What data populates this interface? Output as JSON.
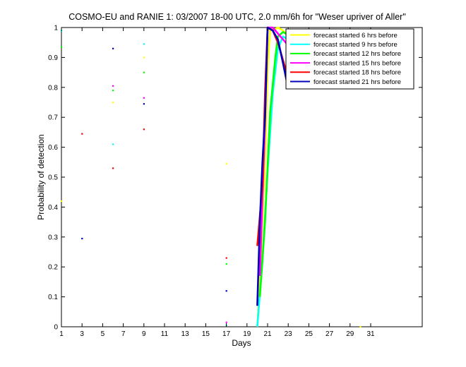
{
  "chart_data": {
    "type": "line",
    "title": "COSMO-EU and RANIE 1: 03/2007 18-00 UTC, 2.0 mm/6h for \"Weser upriver of Aller\"",
    "xlabel": "Days",
    "ylabel": "Probability of detection",
    "xlim": [
      1,
      36
    ],
    "ylim": [
      0,
      1
    ],
    "xticks": [
      1,
      3,
      5,
      7,
      9,
      11,
      13,
      15,
      17,
      19,
      21,
      23,
      25,
      27,
      29,
      31
    ],
    "yticks": [
      0,
      0.1,
      0.2,
      0.3,
      0.4,
      0.5,
      0.6,
      0.7,
      0.8,
      0.9,
      1
    ],
    "yticklabels": [
      "0",
      "0.1",
      "0.2",
      "0.3",
      "0.4",
      "0.5",
      "0.6",
      "0.7",
      "0.8",
      "0.9",
      "1"
    ],
    "grid": false,
    "legend_position": "top-right",
    "series": [
      {
        "name": "forecast started 6 hrs before",
        "color": "#ffff00",
        "points": [
          [
            1,
            0.42
          ],
          [
            6,
            0.75
          ],
          [
            9,
            0.9
          ],
          [
            17,
            0.545
          ],
          [
            30,
            0.0
          ]
        ],
        "line": [
          [
            20,
            0.0
          ],
          [
            20.25,
            0.15
          ],
          [
            20.5,
            0.35
          ],
          [
            20.75,
            0.55
          ],
          [
            21,
            0.85
          ],
          [
            21.25,
            1.0
          ],
          [
            21.5,
            0.99
          ],
          [
            22,
            1.0
          ],
          [
            22.5,
            0.99
          ],
          [
            23,
            0.97
          ]
        ]
      },
      {
        "name": "forecast started 9 hrs before",
        "color": "#00ffff",
        "points": [
          [
            1,
            0.99
          ],
          [
            6,
            0.61
          ],
          [
            9,
            0.945
          ],
          [
            17,
            0.005
          ]
        ],
        "line": [
          [
            20,
            0.0
          ],
          [
            20.5,
            0.22
          ],
          [
            21,
            0.52
          ],
          [
            21.5,
            0.78
          ],
          [
            22,
            0.93
          ],
          [
            22.5,
            0.97
          ],
          [
            23,
            0.96
          ]
        ]
      },
      {
        "name": "forecast started 12 hrs before",
        "color": "#00ff00",
        "points": [
          [
            1,
            0.935
          ],
          [
            6,
            0.79
          ],
          [
            9,
            0.85
          ],
          [
            17,
            0.21
          ]
        ],
        "line": [
          [
            20.25,
            0.1
          ],
          [
            20.75,
            0.35
          ],
          [
            21.25,
            0.72
          ],
          [
            21.75,
            0.9
          ],
          [
            22,
            0.97
          ],
          [
            22.5,
            0.985
          ],
          [
            23,
            0.975
          ]
        ]
      },
      {
        "name": "forecast started 15 hrs before",
        "color": "#ff00ff",
        "points": [
          [
            6,
            0.805
          ],
          [
            9,
            0.765
          ],
          [
            17,
            0.015
          ]
        ],
        "line": [
          [
            20.25,
            0.17
          ],
          [
            20.5,
            0.43
          ],
          [
            20.75,
            0.68
          ],
          [
            21,
            1.0
          ],
          [
            21.5,
            1.0
          ],
          [
            22,
            0.98
          ],
          [
            22.5,
            0.96
          ],
          [
            23,
            0.94
          ]
        ]
      },
      {
        "name": "forecast started 18 hrs before",
        "color": "#ff0000",
        "points": [
          [
            3,
            0.645
          ],
          [
            6,
            0.53
          ],
          [
            9,
            0.66
          ],
          [
            17,
            0.23
          ]
        ],
        "line": [
          [
            20,
            0.27
          ],
          [
            20.5,
            0.47
          ],
          [
            20.75,
            0.78
          ],
          [
            21,
            1.0
          ],
          [
            21.5,
            0.99
          ],
          [
            22,
            0.95
          ],
          [
            22.5,
            0.89
          ],
          [
            23,
            0.83
          ]
        ]
      },
      {
        "name": "forecast started 21 hrs before",
        "color": "#0000bb",
        "points": [
          [
            3,
            0.295
          ],
          [
            6,
            0.93
          ],
          [
            9,
            0.745
          ],
          [
            17,
            0.12
          ]
        ],
        "line": [
          [
            20,
            0.07
          ],
          [
            20.25,
            0.35
          ],
          [
            20.5,
            0.55
          ],
          [
            20.75,
            0.7
          ],
          [
            21,
            1.0
          ],
          [
            21.5,
            0.99
          ],
          [
            22,
            0.96
          ],
          [
            22.5,
            0.88
          ],
          [
            23,
            0.795
          ]
        ]
      }
    ]
  }
}
